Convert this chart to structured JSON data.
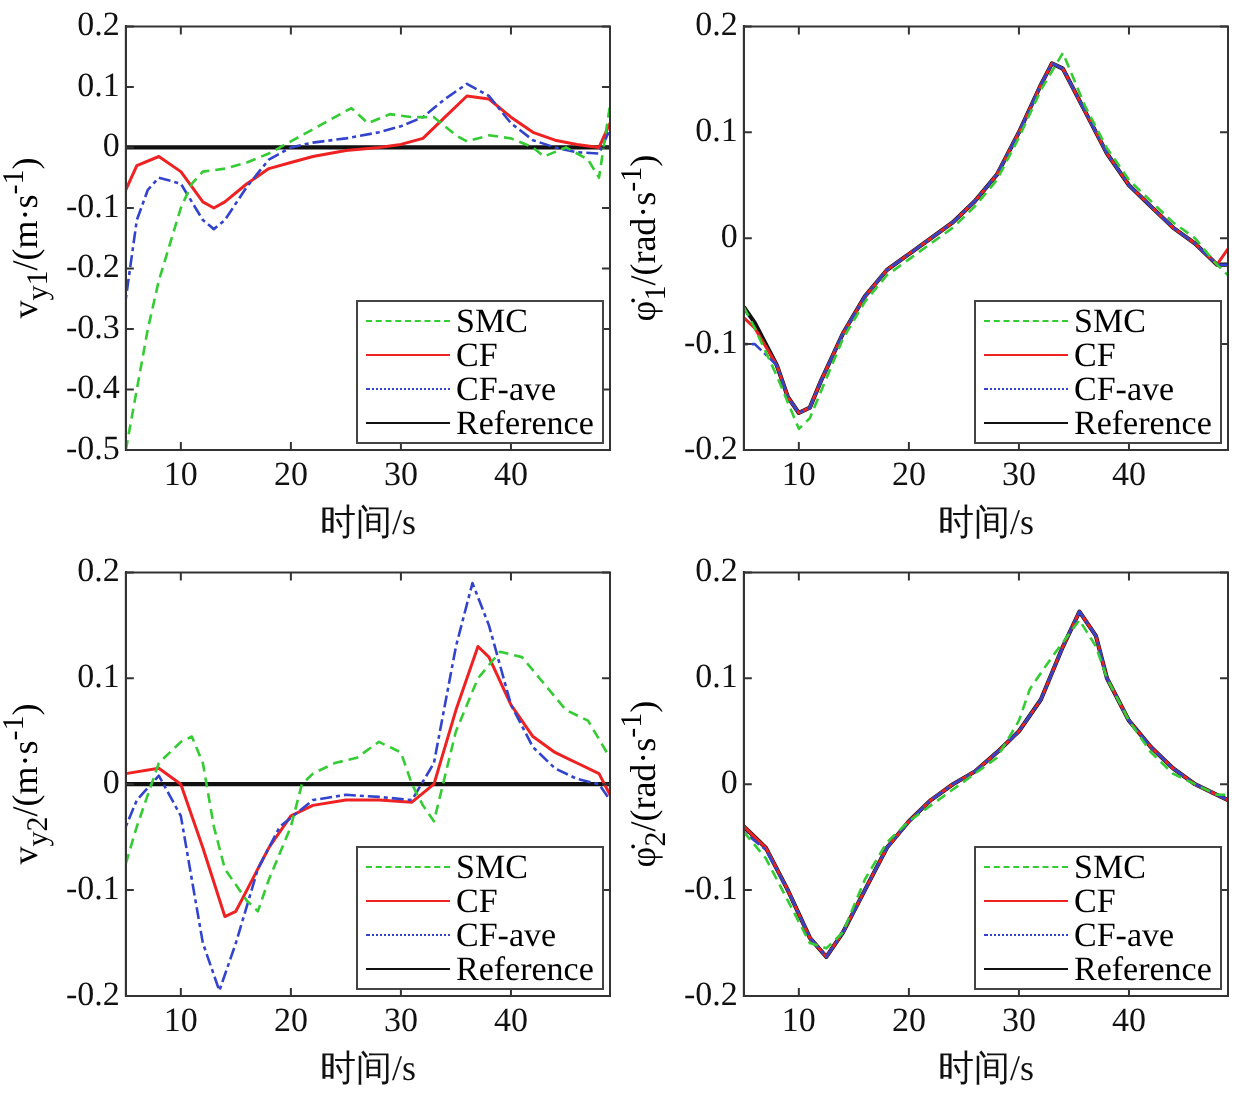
{
  "chart_data": [
    {
      "type": "line",
      "xlabel": "时间/s",
      "ylabel": "v$_{y1}$/(m·s$^{-1}$)",
      "xlim": [
        5,
        49
      ],
      "xticks": [
        10,
        20,
        30,
        40
      ],
      "ylim": [
        -0.5,
        0.2
      ],
      "yticks": [
        -0.5,
        -0.4,
        -0.3,
        -0.2,
        -0.1,
        0,
        0.1,
        0.2
      ],
      "grid": false,
      "legend": "bottom right",
      "series": [
        {
          "name": "SMC",
          "color": "#33cc33",
          "line_style": "dashed",
          "x": [
            5,
            6,
            7,
            8,
            9,
            10,
            11,
            12,
            14,
            16,
            18,
            20,
            22,
            24,
            25.5,
            27,
            29,
            31,
            33,
            35,
            36,
            38,
            40,
            42,
            43,
            45,
            47,
            48,
            49
          ],
          "values": [
            -0.5,
            -0.4,
            -0.3,
            -0.22,
            -0.16,
            -0.1,
            -0.06,
            -0.04,
            -0.035,
            -0.025,
            -0.01,
            0.01,
            0.03,
            0.05,
            0.065,
            0.04,
            0.055,
            0.05,
            0.05,
            0.02,
            0.01,
            0.02,
            0.015,
            0,
            -0.015,
            0,
            -0.02,
            -0.05,
            0.07
          ]
        },
        {
          "name": "CF",
          "color": "#ee2222",
          "line_style": "solid",
          "x": [
            5,
            6,
            8,
            10,
            12,
            13,
            14,
            16,
            18,
            20,
            22,
            25,
            28,
            30,
            32,
            34,
            36,
            38,
            40,
            42,
            44,
            46,
            48,
            49
          ],
          "values": [
            -0.07,
            -0.03,
            -0.015,
            -0.04,
            -0.09,
            -0.1,
            -0.09,
            -0.06,
            -0.035,
            -0.025,
            -0.015,
            -0.005,
            0,
            0.005,
            0.015,
            0.05,
            0.085,
            0.08,
            0.05,
            0.025,
            0.012,
            0.005,
            0,
            0.04
          ]
        },
        {
          "name": "CF-ave",
          "color": "#3344cc",
          "line_style": "dotted",
          "x": [
            5,
            6,
            7,
            8,
            10,
            12,
            13,
            14,
            16,
            18,
            20,
            22,
            25,
            28,
            30,
            32,
            34,
            36,
            38,
            40,
            42,
            44,
            46,
            48,
            49
          ],
          "values": [
            -0.25,
            -0.12,
            -0.07,
            -0.05,
            -0.06,
            -0.12,
            -0.135,
            -0.12,
            -0.065,
            -0.02,
            0,
            0.008,
            0.015,
            0.025,
            0.035,
            0.05,
            0.08,
            0.105,
            0.085,
            0.04,
            0.012,
            0,
            -0.008,
            -0.01,
            0.03
          ]
        },
        {
          "name": "Reference",
          "color": "#111111",
          "line_style": "solid",
          "x": [
            5,
            49
          ],
          "values": [
            0,
            0
          ]
        }
      ]
    },
    {
      "type": "line",
      "xlabel": "时间/s",
      "ylabel": "φ̇$_{1}$/(rad·s$^{-1}$)",
      "xlim": [
        5,
        49
      ],
      "xticks": [
        10,
        20,
        30,
        40
      ],
      "ylim": [
        -0.2,
        0.2
      ],
      "yticks": [
        -0.2,
        -0.1,
        0,
        0.1,
        0.2
      ],
      "grid": false,
      "legend": "bottom right",
      "series": [
        {
          "name": "SMC",
          "color": "#33cc33",
          "line_style": "dashed",
          "x": [
            5,
            6,
            8,
            10,
            11,
            12,
            14,
            16,
            18,
            20,
            22,
            24,
            26,
            28,
            30,
            32,
            34,
            36,
            38,
            40,
            42,
            44,
            46,
            48,
            49
          ],
          "values": [
            -0.065,
            -0.085,
            -0.13,
            -0.18,
            -0.17,
            -0.145,
            -0.095,
            -0.06,
            -0.035,
            -0.02,
            -0.005,
            0.01,
            0.03,
            0.055,
            0.095,
            0.14,
            0.175,
            0.125,
            0.085,
            0.055,
            0.035,
            0.015,
            0,
            -0.025,
            -0.035
          ]
        },
        {
          "name": "CF",
          "color": "#ee2222",
          "line_style": "solid",
          "x": [
            5,
            6,
            8,
            9,
            10,
            11,
            12,
            14,
            16,
            18,
            20,
            22,
            24,
            26,
            28,
            30,
            32,
            33,
            34,
            36,
            38,
            40,
            42,
            44,
            46,
            48,
            49
          ],
          "values": [
            -0.075,
            -0.085,
            -0.12,
            -0.15,
            -0.165,
            -0.16,
            -0.135,
            -0.09,
            -0.055,
            -0.03,
            -0.015,
            0,
            0.015,
            0.035,
            0.06,
            0.1,
            0.145,
            0.165,
            0.16,
            0.12,
            0.08,
            0.05,
            0.03,
            0.01,
            -0.005,
            -0.025,
            -0.01
          ]
        },
        {
          "name": "CF-ave",
          "color": "#3344cc",
          "line_style": "dotted",
          "x": [
            5,
            6,
            8,
            9,
            10,
            11,
            12,
            14,
            16,
            18,
            20,
            22,
            24,
            26,
            28,
            30,
            32,
            33,
            34,
            36,
            38,
            40,
            42,
            44,
            46,
            48,
            49
          ],
          "values": [
            -0.1,
            -0.1,
            -0.12,
            -0.15,
            -0.165,
            -0.16,
            -0.135,
            -0.09,
            -0.055,
            -0.03,
            -0.015,
            0,
            0.015,
            0.035,
            0.06,
            0.1,
            0.145,
            0.165,
            0.16,
            0.12,
            0.08,
            0.05,
            0.03,
            0.01,
            -0.005,
            -0.025,
            -0.025
          ]
        },
        {
          "name": "Reference",
          "color": "#111111",
          "line_style": "solid",
          "x": [
            5,
            6,
            8,
            9,
            10,
            11,
            12,
            14,
            16,
            18,
            20,
            22,
            24,
            26,
            28,
            30,
            32,
            33,
            34,
            36,
            38,
            40,
            42,
            44,
            46,
            48,
            49
          ],
          "values": [
            -0.065,
            -0.08,
            -0.12,
            -0.15,
            -0.165,
            -0.16,
            -0.135,
            -0.09,
            -0.055,
            -0.03,
            -0.015,
            0,
            0.015,
            0.035,
            0.06,
            0.1,
            0.145,
            0.165,
            0.16,
            0.12,
            0.08,
            0.05,
            0.03,
            0.01,
            -0.005,
            -0.025,
            -0.025
          ]
        }
      ]
    },
    {
      "type": "line",
      "xlabel": "时间/s",
      "ylabel": "v$_{y2}$/(m·s$^{-1}$)",
      "xlim": [
        5,
        49
      ],
      "xticks": [
        10,
        20,
        30,
        40
      ],
      "ylim": [
        -0.2,
        0.2
      ],
      "yticks": [
        -0.2,
        -0.1,
        0,
        0.1,
        0.2
      ],
      "grid": false,
      "legend": "bottom right",
      "series": [
        {
          "name": "SMC",
          "color": "#33cc33",
          "line_style": "dashed",
          "x": [
            5,
            6,
            8,
            10,
            11,
            12,
            13,
            14,
            16,
            17,
            18,
            20,
            21,
            22,
            24,
            26,
            28,
            30,
            31,
            32,
            33,
            35,
            37,
            39,
            41,
            43,
            45,
            47,
            49
          ],
          "values": [
            -0.075,
            -0.04,
            0.02,
            0.04,
            0.045,
            0.02,
            -0.04,
            -0.08,
            -0.11,
            -0.12,
            -0.09,
            -0.04,
            0,
            0.01,
            0.02,
            0.025,
            0.04,
            0.03,
            0,
            -0.02,
            -0.035,
            0.05,
            0.1,
            0.125,
            0.12,
            0.095,
            0.07,
            0.06,
            0.025
          ]
        },
        {
          "name": "CF",
          "color": "#ee2222",
          "line_style": "solid",
          "x": [
            5,
            8,
            10,
            12,
            14,
            15,
            16,
            18,
            20,
            22,
            25,
            28,
            31,
            33,
            35,
            37,
            38,
            40,
            42,
            44,
            46,
            48,
            49
          ],
          "values": [
            0.01,
            0.015,
            0,
            -0.06,
            -0.125,
            -0.12,
            -0.1,
            -0.06,
            -0.03,
            -0.02,
            -0.015,
            -0.015,
            -0.017,
            0,
            0.07,
            0.13,
            0.12,
            0.075,
            0.045,
            0.03,
            0.02,
            0.01,
            -0.01
          ]
        },
        {
          "name": "CF-ave",
          "color": "#3344cc",
          "line_style": "dotted",
          "x": [
            5,
            6,
            8,
            10,
            12,
            13.5,
            15,
            17,
            19,
            22,
            25,
            28,
            31,
            33,
            35,
            36.5,
            38,
            40,
            42,
            44,
            46,
            48,
            49
          ],
          "values": [
            -0.04,
            -0.015,
            0.008,
            -0.03,
            -0.15,
            -0.195,
            -0.15,
            -0.08,
            -0.04,
            -0.015,
            -0.01,
            -0.012,
            -0.015,
            0.02,
            0.13,
            0.19,
            0.15,
            0.075,
            0.035,
            0.015,
            0.005,
            0,
            -0.015
          ]
        },
        {
          "name": "Reference",
          "color": "#111111",
          "line_style": "solid",
          "x": [
            5,
            49
          ],
          "values": [
            0,
            0
          ]
        }
      ]
    },
    {
      "type": "line",
      "xlabel": "时间/s",
      "ylabel": "φ̇$_{2}$/(rad·s$^{-1}$)",
      "xlim": [
        5,
        49
      ],
      "xticks": [
        10,
        20,
        30,
        40
      ],
      "ylim": [
        -0.2,
        0.2
      ],
      "yticks": [
        -0.2,
        -0.1,
        0,
        0.1,
        0.2
      ],
      "grid": false,
      "legend": "bottom right",
      "series": [
        {
          "name": "SMC",
          "color": "#33cc33",
          "line_style": "dashed",
          "x": [
            5,
            7,
            9,
            11,
            12.5,
            14,
            16,
            18,
            20,
            22,
            24,
            26,
            28,
            30,
            31,
            33,
            35.5,
            37,
            38,
            40,
            42,
            44,
            46,
            48,
            49
          ],
          "values": [
            -0.045,
            -0.07,
            -0.11,
            -0.15,
            -0.155,
            -0.14,
            -0.09,
            -0.055,
            -0.035,
            -0.02,
            -0.005,
            0.01,
            0.025,
            0.06,
            0.09,
            0.12,
            0.155,
            0.13,
            0.1,
            0.06,
            0.03,
            0.01,
            0,
            -0.01,
            -0.01
          ]
        },
        {
          "name": "CF",
          "color": "#ee2222",
          "line_style": "solid",
          "x": [
            5,
            7,
            9,
            11,
            12.5,
            14,
            16,
            18,
            20,
            22,
            24,
            26,
            28,
            30,
            32,
            34,
            35.5,
            37,
            38,
            40,
            42,
            44,
            46,
            48,
            49
          ],
          "values": [
            -0.04,
            -0.06,
            -0.1,
            -0.145,
            -0.163,
            -0.14,
            -0.1,
            -0.06,
            -0.035,
            -0.015,
            0,
            0.012,
            0.03,
            0.05,
            0.08,
            0.13,
            0.163,
            0.14,
            0.1,
            0.06,
            0.035,
            0.015,
            0,
            -0.01,
            -0.015
          ]
        },
        {
          "name": "CF-ave",
          "color": "#3344cc",
          "line_style": "dotted",
          "x": [
            5,
            7,
            9,
            11,
            12.5,
            14,
            16,
            18,
            20,
            22,
            24,
            26,
            28,
            30,
            32,
            34,
            35.5,
            37,
            38,
            40,
            42,
            44,
            46,
            48,
            49
          ],
          "values": [
            -0.045,
            -0.062,
            -0.1,
            -0.145,
            -0.163,
            -0.14,
            -0.1,
            -0.06,
            -0.035,
            -0.015,
            0,
            0.012,
            0.03,
            0.05,
            0.08,
            0.13,
            0.163,
            0.14,
            0.1,
            0.06,
            0.035,
            0.015,
            0,
            -0.01,
            -0.015
          ]
        },
        {
          "name": "Reference",
          "color": "#111111",
          "line_style": "solid",
          "x": [
            5,
            7,
            9,
            11,
            12.5,
            14,
            16,
            18,
            20,
            22,
            24,
            26,
            28,
            30,
            32,
            34,
            35.5,
            37,
            38,
            40,
            42,
            44,
            46,
            48,
            49
          ],
          "values": [
            -0.04,
            -0.06,
            -0.1,
            -0.145,
            -0.163,
            -0.14,
            -0.1,
            -0.06,
            -0.035,
            -0.015,
            0,
            0.012,
            0.03,
            0.05,
            0.08,
            0.13,
            0.163,
            0.14,
            0.1,
            0.06,
            0.035,
            0.015,
            0,
            -0.01,
            -0.015
          ]
        }
      ]
    }
  ]
}
